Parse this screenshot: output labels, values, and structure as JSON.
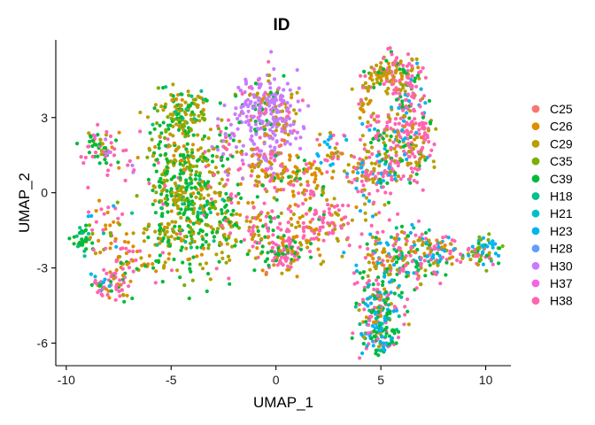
{
  "chart_data": {
    "type": "scatter",
    "title": "ID",
    "xlabel": "UMAP_1",
    "ylabel": "UMAP_2",
    "xlim": [
      -10.5,
      11.2
    ],
    "ylim": [
      -6.9,
      6.1
    ],
    "xticks": [
      -10,
      -5,
      0,
      5,
      10
    ],
    "yticks": [
      -6,
      -3,
      0,
      3
    ],
    "xtick_labels": [
      "-10",
      "-5",
      "0",
      "5",
      "10"
    ],
    "ytick_labels": [
      "-6",
      "-3",
      "0",
      "3"
    ],
    "grid": false,
    "legend_position": "right",
    "legend": [
      {
        "label": "C25",
        "color": "#F8766D"
      },
      {
        "label": "C26",
        "color": "#DE8C00"
      },
      {
        "label": "C29",
        "color": "#B79F00"
      },
      {
        "label": "C35",
        "color": "#7CAE00"
      },
      {
        "label": "C39",
        "color": "#00BA38"
      },
      {
        "label": "H18",
        "color": "#00C08B"
      },
      {
        "label": "H21",
        "color": "#00BFC4"
      },
      {
        "label": "H23",
        "color": "#00B4F0"
      },
      {
        "label": "H28",
        "color": "#619CFF"
      },
      {
        "label": "H30",
        "color": "#C77CFF"
      },
      {
        "label": "H37",
        "color": "#F564E3"
      },
      {
        "label": "H38",
        "color": "#FF64B0"
      }
    ],
    "clusters": [
      {
        "x": -8.5,
        "y": 1.7,
        "sx": 0.45,
        "sy": 0.4,
        "n": 55,
        "mix": {
          "H38": 3,
          "C39": 2,
          "C29": 1,
          "H37": 1
        }
      },
      {
        "x": -7.5,
        "y": 1.6,
        "sx": 0.5,
        "sy": 0.5,
        "n": 20,
        "mix": {
          "H38": 2,
          "C26": 1,
          "H30": 1
        }
      },
      {
        "x": -9.2,
        "y": -1.9,
        "sx": 0.3,
        "sy": 0.3,
        "n": 35,
        "mix": {
          "C39": 3,
          "H18": 2,
          "C35": 1
        }
      },
      {
        "x": -8.2,
        "y": -1.3,
        "sx": 0.5,
        "sy": 0.7,
        "n": 40,
        "mix": {
          "H38": 2,
          "C26": 2,
          "C35": 1,
          "H23": 1
        }
      },
      {
        "x": -7.9,
        "y": -3.7,
        "sx": 0.5,
        "sy": 0.3,
        "n": 60,
        "mix": {
          "H38": 3,
          "C26": 2,
          "C39": 2,
          "H23": 1
        }
      },
      {
        "x": -6.9,
        "y": -2.8,
        "sx": 0.7,
        "sy": 0.5,
        "n": 55,
        "mix": {
          "H38": 3,
          "C26": 2,
          "C29": 1,
          "C39": 1
        }
      },
      {
        "x": -5.2,
        "y": -0.3,
        "sx": 0.4,
        "sy": 1.3,
        "n": 60,
        "mix": {
          "C39": 3,
          "C29": 2,
          "H38": 1,
          "C26": 1
        }
      },
      {
        "x": -4.5,
        "y": 3.1,
        "sx": 0.6,
        "sy": 0.6,
        "n": 140,
        "mix": {
          "C29": 3,
          "C39": 3,
          "C35": 2,
          "C26": 1,
          "H18": 1
        }
      },
      {
        "x": -4.4,
        "y": 1.2,
        "sx": 0.9,
        "sy": 0.8,
        "n": 140,
        "mix": {
          "C39": 3,
          "C29": 2,
          "C35": 2,
          "H38": 1,
          "C26": 1
        }
      },
      {
        "x": -4.0,
        "y": -0.9,
        "sx": 1.0,
        "sy": 1.2,
        "n": 300,
        "mix": {
          "C39": 4,
          "C29": 3,
          "C35": 2,
          "C26": 1,
          "H18": 1
        }
      },
      {
        "x": -2.4,
        "y": 1.7,
        "sx": 0.5,
        "sy": 0.8,
        "n": 45,
        "mix": {
          "H38": 2,
          "C39": 1,
          "C29": 1,
          "H30": 1
        }
      },
      {
        "x": -2.2,
        "y": -1.2,
        "sx": 0.6,
        "sy": 0.8,
        "n": 55,
        "mix": {
          "C39": 2,
          "C29": 2,
          "H38": 1,
          "C26": 1
        }
      },
      {
        "x": -0.7,
        "y": 3.3,
        "sx": 0.7,
        "sy": 0.7,
        "n": 200,
        "mix": {
          "H30": 8,
          "C29": 1,
          "H38": 1,
          "C39": 1
        }
      },
      {
        "x": 0.4,
        "y": 2.7,
        "sx": 0.5,
        "sy": 0.8,
        "n": 90,
        "mix": {
          "H30": 6,
          "H38": 1,
          "C26": 1,
          "C29": 1
        }
      },
      {
        "x": -0.7,
        "y": 1.4,
        "sx": 0.6,
        "sy": 0.5,
        "n": 60,
        "mix": {
          "H30": 3,
          "H38": 2,
          "C26": 1,
          "C29": 1
        }
      },
      {
        "x": 0.2,
        "y": 0.8,
        "sx": 0.8,
        "sy": 0.4,
        "n": 70,
        "mix": {
          "C26": 3,
          "H38": 3,
          "C29": 2,
          "C39": 1
        }
      },
      {
        "x": 1.5,
        "y": 0.6,
        "sx": 0.8,
        "sy": 0.5,
        "n": 60,
        "mix": {
          "C26": 3,
          "C29": 2,
          "H38": 2,
          "C39": 1
        }
      },
      {
        "x": 0.3,
        "y": -2.4,
        "sx": 0.5,
        "sy": 0.4,
        "n": 85,
        "mix": {
          "H38": 4,
          "C39": 2,
          "C29": 1,
          "C26": 1
        }
      },
      {
        "x": -0.7,
        "y": -1.6,
        "sx": 0.5,
        "sy": 0.6,
        "n": 70,
        "mix": {
          "H38": 3,
          "C39": 2,
          "C26": 1,
          "C29": 1
        }
      },
      {
        "x": 1.3,
        "y": -1.4,
        "sx": 0.6,
        "sy": 0.6,
        "n": 75,
        "mix": {
          "H38": 3,
          "C26": 2,
          "C29": 1,
          "C39": 1
        }
      },
      {
        "x": 2.7,
        "y": -1.2,
        "sx": 0.4,
        "sy": 0.5,
        "n": 55,
        "mix": {
          "H38": 4,
          "C26": 1,
          "C29": 1
        }
      },
      {
        "x": 2.6,
        "y": 1.7,
        "sx": 0.5,
        "sy": 0.5,
        "n": 40,
        "mix": {
          "H38": 2,
          "C26": 1,
          "C29": 1,
          "H23": 1
        }
      },
      {
        "x": 4.2,
        "y": 0.9,
        "sx": 0.5,
        "sy": 0.4,
        "n": 55,
        "mix": {
          "H38": 3,
          "C29": 2,
          "C26": 1,
          "H23": 1
        }
      },
      {
        "x": 4.6,
        "y": 0.0,
        "sx": 0.3,
        "sy": 0.6,
        "n": 30,
        "mix": {
          "H38": 2,
          "C29": 1,
          "H23": 1
        }
      },
      {
        "x": 5.0,
        "y": 4.8,
        "sx": 0.5,
        "sy": 0.4,
        "n": 55,
        "mix": {
          "C29": 3,
          "C26": 2,
          "H38": 1,
          "C39": 1
        }
      },
      {
        "x": 5.8,
        "y": 4.8,
        "sx": 0.6,
        "sy": 0.4,
        "n": 75,
        "mix": {
          "H38": 3,
          "C29": 2,
          "C39": 1,
          "C26": 1
        }
      },
      {
        "x": 6.3,
        "y": 3.8,
        "sx": 0.4,
        "sy": 0.6,
        "n": 65,
        "mix": {
          "H38": 3,
          "C29": 1,
          "C39": 1,
          "H23": 1
        }
      },
      {
        "x": 6.5,
        "y": 2.2,
        "sx": 0.5,
        "sy": 0.8,
        "n": 150,
        "mix": {
          "H38": 5,
          "C29": 2,
          "C39": 1,
          "H23": 1,
          "C26": 1
        }
      },
      {
        "x": 5.2,
        "y": 2.3,
        "sx": 0.5,
        "sy": 0.5,
        "n": 55,
        "mix": {
          "C29": 2,
          "H38": 2,
          "C39": 1,
          "H23": 1
        }
      },
      {
        "x": 5.5,
        "y": 1.0,
        "sx": 0.5,
        "sy": 0.5,
        "n": 70,
        "mix": {
          "H38": 3,
          "C29": 2,
          "H23": 1,
          "C39": 1
        }
      },
      {
        "x": 4.2,
        "y": 3.7,
        "sx": 0.3,
        "sy": 0.5,
        "n": 30,
        "mix": {
          "C29": 2,
          "C26": 1,
          "H38": 1
        }
      },
      {
        "x": 6.0,
        "y": -2.6,
        "sx": 1.0,
        "sy": 0.6,
        "n": 230,
        "mix": {
          "H38": 3,
          "H23": 2,
          "C29": 2,
          "C39": 2,
          "C26": 1,
          "H18": 1
        }
      },
      {
        "x": 9.9,
        "y": -2.3,
        "sx": 0.4,
        "sy": 0.3,
        "n": 60,
        "mix": {
          "C35": 2,
          "H23": 2,
          "H38": 2,
          "C29": 1,
          "C39": 1
        }
      },
      {
        "x": 8.2,
        "y": -2.3,
        "sx": 0.8,
        "sy": 0.3,
        "n": 60,
        "mix": {
          "H38": 2,
          "C26": 1,
          "H23": 1,
          "C29": 1
        }
      },
      {
        "x": 5.0,
        "y": -4.6,
        "sx": 0.5,
        "sy": 0.7,
        "n": 140,
        "mix": {
          "H38": 3,
          "H23": 2,
          "C39": 2,
          "C29": 1,
          "H18": 1,
          "C26": 1
        }
      },
      {
        "x": 4.9,
        "y": -5.8,
        "sx": 0.5,
        "sy": 0.3,
        "n": 75,
        "mix": {
          "H23": 2,
          "H38": 2,
          "C39": 2,
          "H18": 1,
          "C29": 1
        }
      }
    ]
  }
}
